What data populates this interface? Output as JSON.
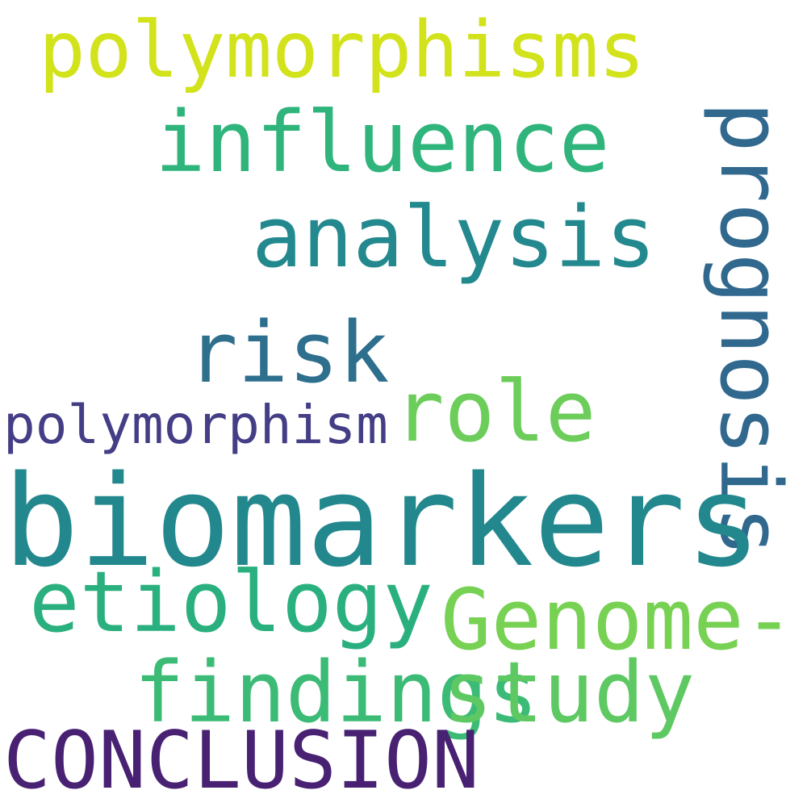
{
  "words": {
    "polymorphisms": "polymorphisms",
    "influence": "influence",
    "analysis": "analysis",
    "prognosis": "prognosis",
    "risk": "risk",
    "role": "role",
    "polymorphism": "polymorphism",
    "biomarkers": "biomarkers",
    "etiology": "etiology",
    "genome": "Genome-",
    "findings": "findings",
    "study": "study",
    "conclusion": "CONCLUSION"
  },
  "colors": {
    "polymorphisms": "#d2e21b",
    "influence": "#2fb47c",
    "analysis": "#23898e",
    "prognosis": "#31688e",
    "risk": "#2e6f8e",
    "role": "#6ccd5a",
    "polymorphism": "#433e85",
    "biomarkers": "#23888e",
    "etiology": "#2ab07f",
    "genome": "#77d153",
    "findings": "#3bbb75",
    "study": "#5ec962",
    "conclusion": "#482173"
  }
}
